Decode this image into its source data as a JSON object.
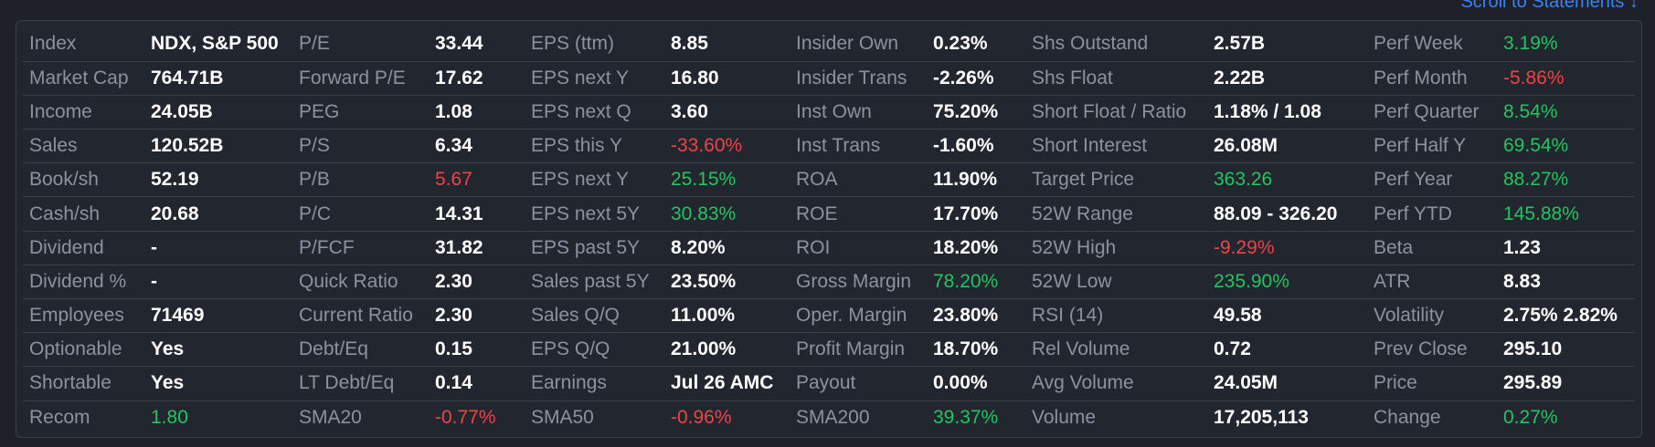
{
  "header": {
    "scroll_link": "Scroll to Statements ↓"
  },
  "rows": [
    [
      [
        "Index",
        "NDX, S&P 500",
        ""
      ],
      [
        "P/E",
        "33.44",
        ""
      ],
      [
        "EPS (ttm)",
        "8.85",
        ""
      ],
      [
        "Insider Own",
        "0.23%",
        ""
      ],
      [
        "Shs Outstand",
        "2.57B",
        ""
      ],
      [
        "Perf Week",
        "3.19%",
        "pos"
      ]
    ],
    [
      [
        "Market Cap",
        "764.71B",
        ""
      ],
      [
        "Forward P/E",
        "17.62",
        ""
      ],
      [
        "EPS next Y",
        "16.80",
        ""
      ],
      [
        "Insider Trans",
        "-2.26%",
        ""
      ],
      [
        "Shs Float",
        "2.22B",
        ""
      ],
      [
        "Perf Month",
        "-5.86%",
        "neg"
      ]
    ],
    [
      [
        "Income",
        "24.05B",
        ""
      ],
      [
        "PEG",
        "1.08",
        ""
      ],
      [
        "EPS next Q",
        "3.60",
        ""
      ],
      [
        "Inst Own",
        "75.20%",
        ""
      ],
      [
        "Short Float / Ratio",
        "1.18% / 1.08",
        ""
      ],
      [
        "Perf Quarter",
        "8.54%",
        "pos"
      ]
    ],
    [
      [
        "Sales",
        "120.52B",
        ""
      ],
      [
        "P/S",
        "6.34",
        ""
      ],
      [
        "EPS this Y",
        "-33.60%",
        "neg"
      ],
      [
        "Inst Trans",
        "-1.60%",
        ""
      ],
      [
        "Short Interest",
        "26.08M",
        ""
      ],
      [
        "Perf Half Y",
        "69.54%",
        "pos"
      ]
    ],
    [
      [
        "Book/sh",
        "52.19",
        ""
      ],
      [
        "P/B",
        "5.67",
        "neg"
      ],
      [
        "EPS next Y",
        "25.15%",
        "pos"
      ],
      [
        "ROA",
        "11.90%",
        ""
      ],
      [
        "Target Price",
        "363.26",
        "pos"
      ],
      [
        "Perf Year",
        "88.27%",
        "pos"
      ]
    ],
    [
      [
        "Cash/sh",
        "20.68",
        ""
      ],
      [
        "P/C",
        "14.31",
        ""
      ],
      [
        "EPS next 5Y",
        "30.83%",
        "pos"
      ],
      [
        "ROE",
        "17.70%",
        ""
      ],
      [
        "52W Range",
        "88.09 - 326.20",
        ""
      ],
      [
        "Perf YTD",
        "145.88%",
        "pos"
      ]
    ],
    [
      [
        "Dividend",
        "-",
        ""
      ],
      [
        "P/FCF",
        "31.82",
        ""
      ],
      [
        "EPS past 5Y",
        "8.20%",
        ""
      ],
      [
        "ROI",
        "18.20%",
        ""
      ],
      [
        "52W High",
        "-9.29%",
        "neg"
      ],
      [
        "Beta",
        "1.23",
        ""
      ]
    ],
    [
      [
        "Dividend %",
        "-",
        ""
      ],
      [
        "Quick Ratio",
        "2.30",
        ""
      ],
      [
        "Sales past 5Y",
        "23.50%",
        ""
      ],
      [
        "Gross Margin",
        "78.20%",
        "pos"
      ],
      [
        "52W Low",
        "235.90%",
        "pos"
      ],
      [
        "ATR",
        "8.83",
        ""
      ]
    ],
    [
      [
        "Employees",
        "71469",
        ""
      ],
      [
        "Current Ratio",
        "2.30",
        ""
      ],
      [
        "Sales Q/Q",
        "11.00%",
        ""
      ],
      [
        "Oper. Margin",
        "23.80%",
        ""
      ],
      [
        "RSI (14)",
        "49.58",
        ""
      ],
      [
        "Volatility",
        "2.75% 2.82%",
        ""
      ]
    ],
    [
      [
        "Optionable",
        "Yes",
        ""
      ],
      [
        "Debt/Eq",
        "0.15",
        ""
      ],
      [
        "EPS Q/Q",
        "21.00%",
        ""
      ],
      [
        "Profit Margin",
        "18.70%",
        ""
      ],
      [
        "Rel Volume",
        "0.72",
        ""
      ],
      [
        "Prev Close",
        "295.10",
        ""
      ]
    ],
    [
      [
        "Shortable",
        "Yes",
        ""
      ],
      [
        "LT Debt/Eq",
        "0.14",
        ""
      ],
      [
        "Earnings",
        "Jul 26 AMC",
        ""
      ],
      [
        "Payout",
        "0.00%",
        ""
      ],
      [
        "Avg Volume",
        "24.05M",
        ""
      ],
      [
        "Price",
        "295.89",
        ""
      ]
    ],
    [
      [
        "Recom",
        "1.80",
        "pos"
      ],
      [
        "SMA20",
        "-0.77%",
        "neg"
      ],
      [
        "SMA50",
        "-0.96%",
        "neg"
      ],
      [
        "SMA200",
        "39.37%",
        "pos"
      ],
      [
        "Volume",
        "17,205,113",
        ""
      ],
      [
        "Change",
        "0.27%",
        "pos"
      ]
    ]
  ]
}
